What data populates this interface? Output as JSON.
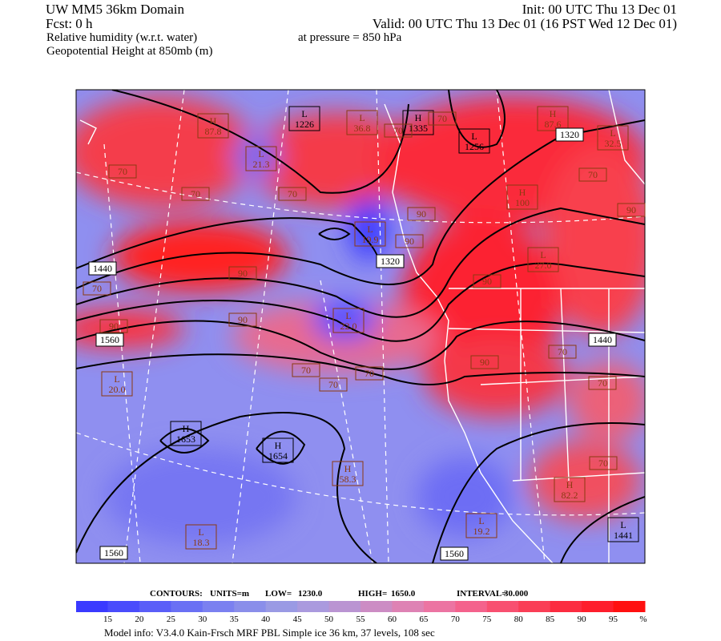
{
  "header": {
    "left": [
      "UW MM5 36km Domain",
      "Fcst:    0 h"
    ],
    "right": [
      "Init: 00 UTC Thu 13 Dec 01",
      "Valid: 00 UTC Thu 13 Dec 01 (16 PST Wed 12 Dec 01)"
    ],
    "field": "Relative humidity (w.r.t. water)",
    "level": "at pressure =  850 hPa",
    "contour_field": "Geopotential Height at 850mb (m)"
  },
  "map": {
    "centers": [
      {
        "kind": "L",
        "value": "1226",
        "field": "height"
      },
      {
        "kind": "L",
        "value": "36.8",
        "field": "rh"
      },
      {
        "kind": "H",
        "value": "1335",
        "field": "height"
      },
      {
        "kind": "H",
        "value": "87.8",
        "field": "rh"
      },
      {
        "kind": "L",
        "value": "21.3",
        "field": "rh"
      },
      {
        "kind": "L",
        "value": "1256",
        "field": "height"
      },
      {
        "kind": "H",
        "value": "87.6",
        "field": "rh"
      },
      {
        "kind": "L",
        "value": "32.5",
        "field": "rh"
      },
      {
        "kind": "H",
        "value": "100",
        "field": "rh"
      },
      {
        "kind": "L",
        "value": "19.9",
        "field": "rh"
      },
      {
        "kind": "L",
        "value": "27.0",
        "field": "rh"
      },
      {
        "kind": "L",
        "value": "22.0",
        "field": "rh"
      },
      {
        "kind": "L",
        "value": "20.0",
        "field": "rh"
      },
      {
        "kind": "H",
        "value": "1653",
        "field": "height"
      },
      {
        "kind": "H",
        "value": "1654",
        "field": "height"
      },
      {
        "kind": "H",
        "value": "58.3",
        "field": "rh"
      },
      {
        "kind": "H",
        "value": "82.2",
        "field": "rh"
      },
      {
        "kind": "L",
        "value": "19.2",
        "field": "rh"
      },
      {
        "kind": "L",
        "value": "1441",
        "field": "height"
      },
      {
        "kind": "L",
        "value": "18.3",
        "field": "rh"
      }
    ],
    "height_labels": [
      "1440",
      "1320",
      "1320",
      "1560",
      "1440",
      "1560",
      "1560"
    ],
    "rh_labels": [
      "70",
      "70",
      "70",
      "70",
      "70",
      "70",
      "90",
      "90",
      "90",
      "70",
      "90",
      "90",
      "90",
      "70",
      "70",
      "70",
      "70",
      "90",
      "70",
      "70",
      "90"
    ]
  },
  "contours_info": [
    "CONTOURS:",
    "UNITS=m",
    "LOW=",
    "1230.0",
    "HIGH=",
    "1650.0",
    "INTERVAL=",
    "30.000"
  ],
  "colorbar": {
    "ticks": [
      "15",
      "20",
      "25",
      "30",
      "35",
      "40",
      "45",
      "50",
      "55",
      "60",
      "65",
      "70",
      "75",
      "80",
      "85",
      "90",
      "95"
    ],
    "unit": "%",
    "colors": [
      "#3a3aff",
      "#4a4cfc",
      "#5a5ef8",
      "#6a70f4",
      "#7b80f0",
      "#8a8eea",
      "#9a9ae4",
      "#aa9ade",
      "#ba94d2",
      "#cc8cc4",
      "#de82b4",
      "#ec74a2",
      "#f4628c",
      "#f85070",
      "#fa3e56",
      "#fc2c40",
      "#fe1e2c",
      "#ff1010"
    ]
  },
  "footer": "Model info: V3.4.0 Kain-Frsch MRF PBL    Simple ice    36 km,  37 levels,  108 sec"
}
